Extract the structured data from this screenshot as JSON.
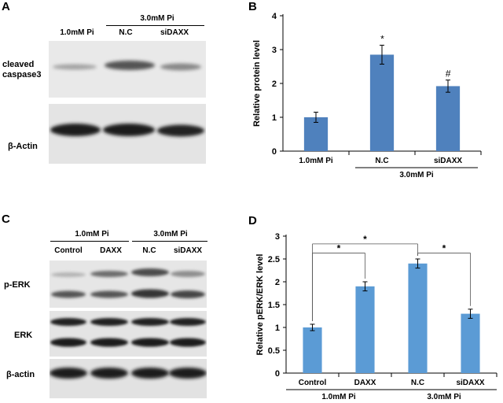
{
  "panels": {
    "A": {
      "letter": "A",
      "groups": [
        {
          "label": "1.0mM Pi",
          "lanes": [
            "1.0mM Pi"
          ]
        },
        {
          "label": "3.0mM Pi",
          "lanes": [
            "N.C",
            "siDAXX"
          ]
        }
      ],
      "lane_labels": [
        "1.0mM Pi",
        "N.C",
        "siDAXX"
      ],
      "rows": [
        {
          "label": "cleaved\ncaspase3",
          "band_intensity": [
            0.35,
            0.75,
            0.45
          ]
        },
        {
          "label": "β-Actin",
          "band_intensity": [
            0.95,
            0.95,
            0.92
          ]
        }
      ]
    },
    "C": {
      "letter": "C",
      "groups": [
        {
          "label": "1.0mM Pi",
          "lanes": [
            "Control",
            "DAXX"
          ]
        },
        {
          "label": "3.0mM Pi",
          "lanes": [
            "N.C",
            "siDAXX"
          ]
        }
      ],
      "lane_labels": [
        "Control",
        "DAXX",
        "N.C",
        "siDAXX"
      ],
      "rows": [
        {
          "label": "p-ERK"
        },
        {
          "label": "ERK"
        },
        {
          "label": "β-actin"
        }
      ]
    }
  },
  "chart_data": [
    {
      "panel": "B",
      "type": "bar",
      "categories": [
        "1.0mM Pi",
        "N.C",
        "siDAXX"
      ],
      "values": [
        1.0,
        2.85,
        1.92
      ],
      "errors": [
        0.15,
        0.28,
        0.18
      ],
      "significance": [
        "",
        "*",
        "#"
      ],
      "group_label": "3.0mM Pi",
      "group_categories": [
        "N.C",
        "siDAXX"
      ],
      "title": "",
      "xlabel": "",
      "ylabel": "Relative protein level",
      "ylim": [
        0,
        4
      ],
      "yticks": [
        0,
        1,
        2,
        3,
        4
      ],
      "grid": false,
      "color": "#4f81bd"
    },
    {
      "panel": "D",
      "type": "bar",
      "categories": [
        "Control",
        "DAXX",
        "N.C",
        "siDAXX"
      ],
      "values": [
        1.0,
        1.9,
        2.4,
        1.3
      ],
      "errors": [
        0.07,
        0.1,
        0.1,
        0.1
      ],
      "groups": [
        {
          "label": "1.0mM Pi",
          "categories": [
            "Control",
            "DAXX"
          ]
        },
        {
          "label": "3.0mM Pi",
          "categories": [
            "N.C",
            "siDAXX"
          ]
        }
      ],
      "comparisons": [
        {
          "from": "Control",
          "to": "DAXX",
          "mark": "*"
        },
        {
          "from": "Control",
          "to": "N.C",
          "mark": "*"
        },
        {
          "from": "N.C",
          "to": "siDAXX",
          "mark": "*"
        }
      ],
      "title": "",
      "xlabel": "",
      "ylabel": "Relative pERK/ERK level",
      "ylim": [
        0,
        3
      ],
      "yticks": [
        0,
        0.5,
        1,
        1.5,
        2,
        2.5,
        3
      ],
      "grid": false,
      "color": "#5b9bd5"
    }
  ]
}
